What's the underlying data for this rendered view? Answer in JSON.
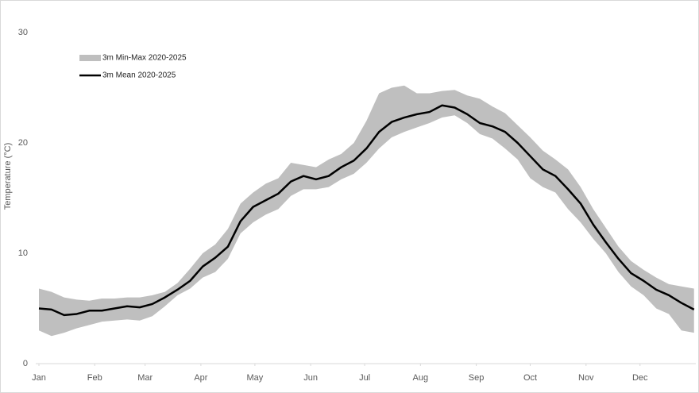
{
  "chart_data": {
    "type": "band-line",
    "y_label": "Temperature (°C)",
    "x": [
      1,
      8,
      15,
      22,
      29,
      36,
      43,
      50,
      57,
      64,
      71,
      78,
      85,
      92,
      99,
      106,
      113,
      120,
      127,
      134,
      141,
      148,
      155,
      162,
      169,
      176,
      183,
      190,
      197,
      204,
      211,
      218,
      225,
      232,
      239,
      246,
      253,
      260,
      267,
      274,
      281,
      288,
      295,
      302,
      309,
      316,
      323,
      330,
      337,
      344,
      351,
      358,
      365
    ],
    "xlim": [
      1,
      366
    ],
    "xticks": [
      {
        "value": 1,
        "label": "Jan"
      },
      {
        "value": 32,
        "label": "Feb"
      },
      {
        "value": 60,
        "label": "Mar"
      },
      {
        "value": 91,
        "label": "Apr"
      },
      {
        "value": 121,
        "label": "May"
      },
      {
        "value": 152,
        "label": "Jun"
      },
      {
        "value": 182,
        "label": "Jul"
      },
      {
        "value": 213,
        "label": "Aug"
      },
      {
        "value": 244,
        "label": "Sep"
      },
      {
        "value": 274,
        "label": "Oct"
      },
      {
        "value": 305,
        "label": "Nov"
      },
      {
        "value": 335,
        "label": "Dec"
      }
    ],
    "ylim": [
      0,
      30
    ],
    "yticks": [
      0,
      10,
      20,
      30
    ],
    "legend": "top-left",
    "series": [
      {
        "name": "3m Min-Max 2020-2025",
        "color": "#bfbfbf",
        "lower": [
          3.0,
          2.5,
          2.8,
          3.2,
          3.5,
          3.8,
          3.9,
          4.0,
          3.9,
          4.3,
          5.2,
          6.2,
          6.8,
          7.8,
          8.3,
          9.5,
          11.8,
          12.8,
          13.5,
          14.0,
          15.2,
          15.8,
          15.8,
          16.0,
          16.7,
          17.2,
          18.2,
          19.5,
          20.5,
          21.0,
          21.4,
          21.8,
          22.3,
          22.5,
          21.8,
          20.8,
          20.4,
          19.5,
          18.5,
          16.8,
          16.0,
          15.5,
          14.0,
          12.8,
          11.3,
          10.0,
          8.3,
          7.0,
          6.2,
          5.0,
          4.5,
          3.0,
          2.8
        ],
        "upper": [
          6.8,
          6.5,
          6.0,
          5.8,
          5.7,
          5.9,
          5.9,
          6.0,
          6.0,
          6.2,
          6.5,
          7.3,
          8.6,
          10.0,
          10.8,
          12.2,
          14.5,
          15.5,
          16.3,
          16.8,
          18.2,
          18.0,
          17.8,
          18.5,
          19.0,
          20.0,
          22.0,
          24.5,
          25.0,
          25.2,
          24.5,
          24.5,
          24.7,
          24.8,
          24.3,
          24.0,
          23.3,
          22.7,
          21.6,
          20.5,
          19.3,
          18.5,
          17.6,
          16.0,
          14.0,
          12.3,
          10.6,
          9.3,
          8.5,
          7.8,
          7.2,
          7.0,
          6.8
        ]
      },
      {
        "name": "3m Mean 2020-2025",
        "color": "#000000",
        "values": [
          5.0,
          4.9,
          4.4,
          4.5,
          4.8,
          4.8,
          5.0,
          5.2,
          5.1,
          5.4,
          6.0,
          6.7,
          7.5,
          8.8,
          9.6,
          10.6,
          12.9,
          14.2,
          14.8,
          15.4,
          16.5,
          17.0,
          16.7,
          17.0,
          17.8,
          18.4,
          19.5,
          21.0,
          21.9,
          22.3,
          22.6,
          22.8,
          23.4,
          23.2,
          22.6,
          21.8,
          21.5,
          21.0,
          20.0,
          18.8,
          17.6,
          17.0,
          15.8,
          14.5,
          12.6,
          11.0,
          9.5,
          8.2,
          7.5,
          6.7,
          6.2,
          5.5,
          4.9
        ]
      }
    ]
  }
}
